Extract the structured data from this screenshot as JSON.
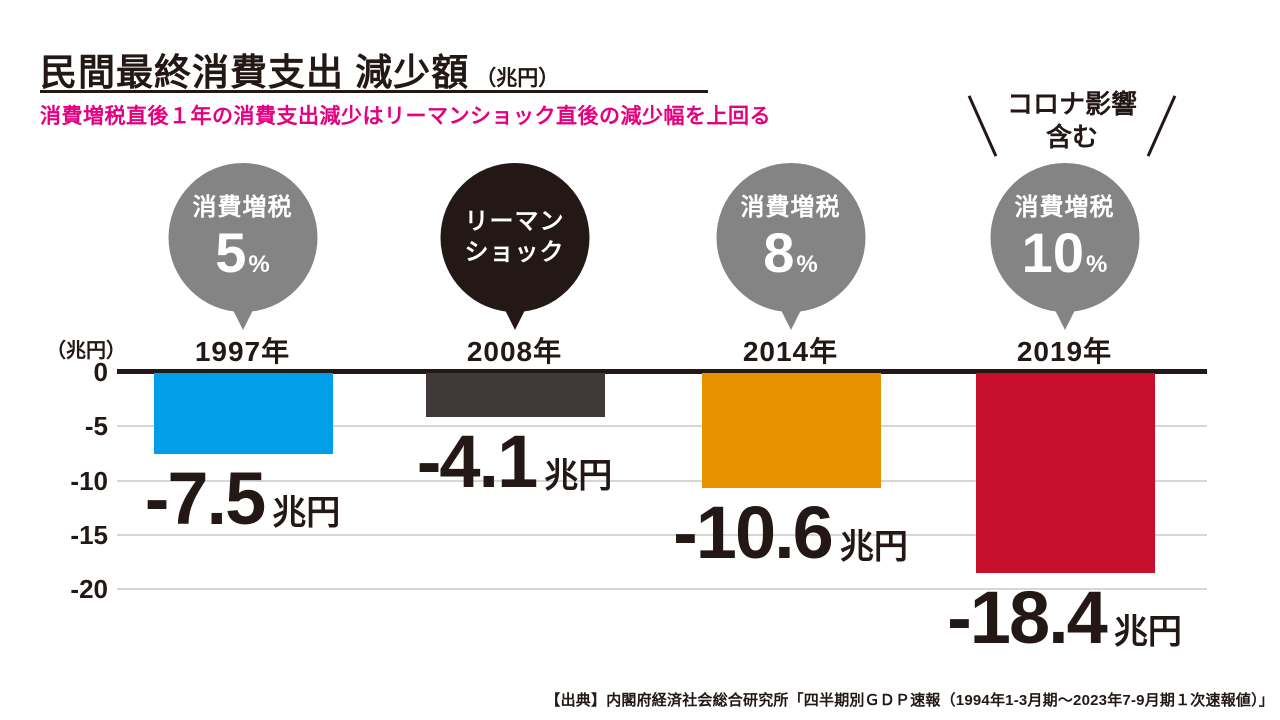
{
  "header": {
    "title": "民間最終消費支出 減少額",
    "title_unit": "（兆円）",
    "subtitle": "消費増税直後１年の消費支出減少はリーマンショック直後の減少幅を上回る"
  },
  "axis": {
    "unit_label": "（兆円）",
    "tick_labels": [
      "0",
      "-5",
      "-10",
      "-15",
      "-20"
    ]
  },
  "annotation": {
    "line1": "コロナ影響",
    "line2": "含む"
  },
  "source": "【出典】内閣府経済社会総合研究所「四半期別ＧＤＰ速報（1994年1-3月期～2023年7-9月期１次速報値）」",
  "colors": {
    "ink": "#231815",
    "subtitle_magenta": "#e4007f",
    "gridline": "#d6d6d6",
    "bubble_gray": "#848484",
    "bubble_black": "#231815",
    "bar_blue": "#009fe8",
    "bar_dark": "#403839",
    "bar_orange": "#e89200",
    "bar_red": "#c8102e"
  },
  "chart_data": {
    "type": "bar",
    "title": "民間最終消費支出 減少額（兆円）",
    "xlabel": "",
    "ylabel": "兆円",
    "ylim": [
      -20,
      0
    ],
    "yticks": [
      0,
      -5,
      -10,
      -15,
      -20
    ],
    "grid": true,
    "legend": false,
    "categories": [
      "1997年",
      "2008年",
      "2014年",
      "2019年"
    ],
    "values": [
      -7.5,
      -4.1,
      -10.6,
      -18.4
    ],
    "bars": [
      {
        "year": "1997年",
        "value": -7.5,
        "value_label": "-7.5",
        "value_unit": "兆円",
        "bar_color": "#009fe8",
        "bubble_color": "#848484",
        "bubble_top": "消費増税",
        "bubble_big": "5",
        "bubble_pct": "%",
        "bubble_line2": ""
      },
      {
        "year": "2008年",
        "value": -4.1,
        "value_label": "-4.1",
        "value_unit": "兆円",
        "bar_color": "#403839",
        "bubble_color": "#231815",
        "bubble_top": "リーマン",
        "bubble_big": "",
        "bubble_pct": "",
        "bubble_line2": "ショック"
      },
      {
        "year": "2014年",
        "value": -10.6,
        "value_label": "-10.6",
        "value_unit": "兆円",
        "bar_color": "#e89200",
        "bubble_color": "#848484",
        "bubble_top": "消費増税",
        "bubble_big": "8",
        "bubble_pct": "%",
        "bubble_line2": ""
      },
      {
        "year": "2019年",
        "value": -18.4,
        "value_label": "-18.4",
        "value_unit": "兆円",
        "bar_color": "#c8102e",
        "bubble_color": "#848484",
        "bubble_top": "消費増税",
        "bubble_big": "10",
        "bubble_pct": "%",
        "bubble_line2": ""
      }
    ]
  }
}
